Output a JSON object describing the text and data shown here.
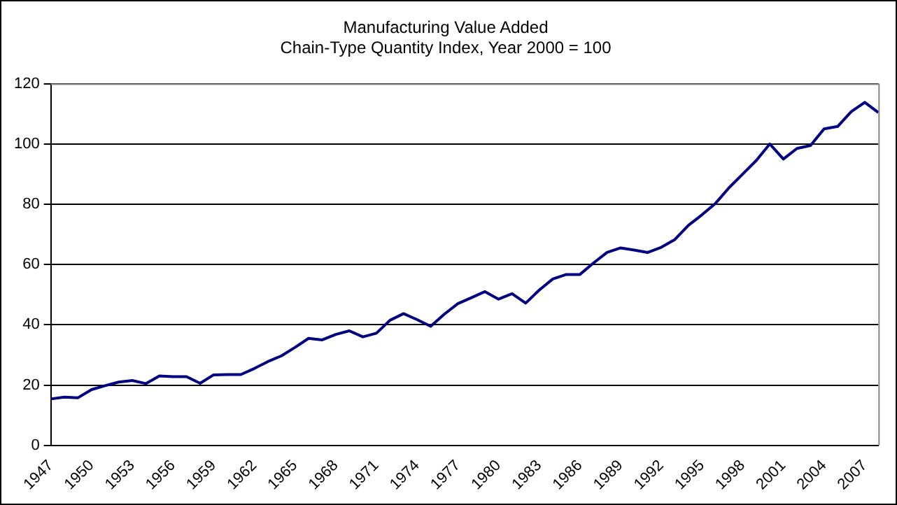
{
  "chart_data": {
    "type": "line",
    "title": "Manufacturing Value Added",
    "subtitle": "Chain-Type Quantity Index, Year 2000 = 100",
    "categories": [
      "1947",
      null,
      null,
      "1950",
      null,
      null,
      "1953",
      null,
      null,
      "1956",
      null,
      null,
      "1959",
      null,
      null,
      "1962",
      null,
      null,
      "1965",
      null,
      null,
      "1968",
      null,
      null,
      "1971",
      null,
      null,
      "1974",
      null,
      null,
      "1977",
      null,
      null,
      "1980",
      null,
      null,
      "1983",
      null,
      null,
      "1986",
      null,
      null,
      "1989",
      null,
      null,
      "1992",
      null,
      null,
      "1995",
      null,
      null,
      "1998",
      null,
      null,
      "2001",
      null,
      null,
      "2004",
      null,
      null,
      "2007",
      null
    ],
    "series": [
      {
        "color": "#000080",
        "values": [
          15.4,
          16,
          15.8,
          18.5,
          19.8,
          21,
          21.5,
          20.5,
          23,
          22.8,
          22.8,
          20.6,
          23.4,
          23.5,
          23.5,
          25.5,
          27.8,
          29.7,
          32.5,
          35.5,
          35,
          36.8,
          38,
          36,
          37.2,
          41.5,
          43.7,
          41.7,
          39.5,
          43.5,
          47,
          49,
          51,
          48.5,
          50.3,
          47.2,
          51.5,
          55.2,
          56.7,
          56.7,
          60.5,
          64,
          65.5,
          64.8,
          64,
          65.7,
          68.3,
          73,
          76.5,
          80.3,
          85.5,
          90,
          94.5,
          100,
          95,
          98.5,
          99.5,
          105,
          105.8,
          110.7,
          113.8,
          110.4
        ]
      }
    ],
    "ylim": [
      0,
      120
    ],
    "yticks": [
      0,
      20,
      40,
      60,
      80,
      100,
      120
    ],
    "grid": "y",
    "legend": false,
    "marker": "none",
    "line_style": "solid"
  }
}
